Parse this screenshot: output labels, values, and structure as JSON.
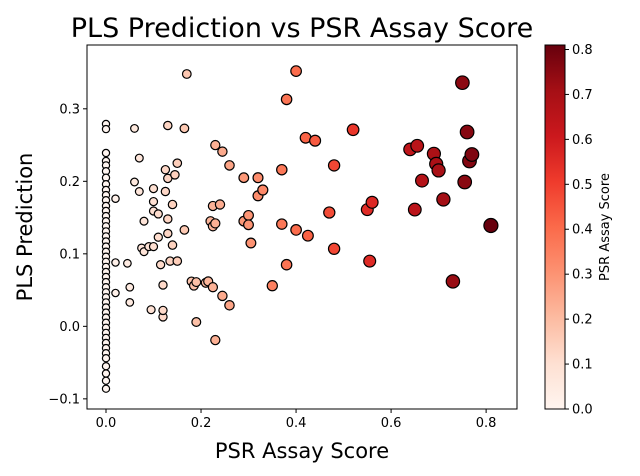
{
  "chart_data": {
    "type": "scatter",
    "title": "PLS Prediction vs PSR Assay Score",
    "xlabel": "PSR Assay Score",
    "ylabel": "PLS Prediction",
    "colorbar_label": "PSR Assay Score",
    "xlim": [
      -0.04,
      0.865
    ],
    "ylim": [
      -0.114,
      0.388
    ],
    "clim": [
      0.0,
      0.81
    ],
    "grid": false,
    "colormap": "Reds",
    "marker_edge_color": "#000000",
    "x_ticks": [
      0.0,
      0.2,
      0.4,
      0.6,
      0.8
    ],
    "x_tick_labels": [
      "0.0",
      "0.2",
      "0.4",
      "0.6",
      "0.8"
    ],
    "y_ticks": [
      -0.1,
      0.0,
      0.1,
      0.2,
      0.3
    ],
    "y_tick_labels": [
      "−0.1",
      "0.0",
      "0.1",
      "0.2",
      "0.3"
    ],
    "colorbar_ticks": [
      0.0,
      0.1,
      0.2,
      0.3,
      0.4,
      0.5,
      0.6,
      0.7,
      0.8
    ],
    "colorbar_tick_labels": [
      "0.0",
      "0.1",
      "0.2",
      "0.3",
      "0.4",
      "0.5",
      "0.6",
      "0.7",
      "0.8"
    ],
    "points": [
      [
        0.0,
        0.279
      ],
      [
        0.0,
        0.272
      ],
      [
        0.0,
        0.239
      ],
      [
        0.0,
        0.228
      ],
      [
        0.0,
        0.222
      ],
      [
        0.0,
        0.214
      ],
      [
        0.0,
        0.205
      ],
      [
        0.0,
        0.196
      ],
      [
        0.0,
        0.188
      ],
      [
        0.0,
        0.181
      ],
      [
        0.0,
        0.174
      ],
      [
        0.0,
        0.166
      ],
      [
        0.0,
        0.159
      ],
      [
        0.0,
        0.152
      ],
      [
        0.0,
        0.145
      ],
      [
        0.0,
        0.138
      ],
      [
        0.0,
        0.131
      ],
      [
        0.0,
        0.124
      ],
      [
        0.0,
        0.117
      ],
      [
        0.0,
        0.11
      ],
      [
        0.0,
        0.103
      ],
      [
        0.0,
        0.096
      ],
      [
        0.0,
        0.089
      ],
      [
        0.0,
        0.082
      ],
      [
        0.0,
        0.075
      ],
      [
        0.0,
        0.068
      ],
      [
        0.0,
        0.061
      ],
      [
        0.0,
        0.054
      ],
      [
        0.0,
        0.047
      ],
      [
        0.0,
        0.04
      ],
      [
        0.0,
        0.033
      ],
      [
        0.0,
        0.026
      ],
      [
        0.0,
        0.019
      ],
      [
        0.0,
        0.012
      ],
      [
        0.0,
        0.005
      ],
      [
        0.0,
        -0.002
      ],
      [
        0.0,
        -0.009
      ],
      [
        0.0,
        -0.016
      ],
      [
        0.0,
        -0.023
      ],
      [
        0.0,
        -0.03
      ],
      [
        0.0,
        -0.037
      ],
      [
        0.0,
        -0.044
      ],
      [
        0.0,
        -0.055
      ],
      [
        0.0,
        -0.065
      ],
      [
        0.0,
        -0.075
      ],
      [
        0.0,
        -0.086
      ],
      [
        0.02,
        0.176
      ],
      [
        0.02,
        0.088
      ],
      [
        0.02,
        0.046
      ],
      [
        0.045,
        0.087
      ],
      [
        0.05,
        0.033
      ],
      [
        0.05,
        0.054
      ],
      [
        0.06,
        0.199
      ],
      [
        0.06,
        0.273
      ],
      [
        0.07,
        0.232
      ],
      [
        0.07,
        0.186
      ],
      [
        0.075,
        0.108
      ],
      [
        0.08,
        0.145
      ],
      [
        0.08,
        0.103
      ],
      [
        0.09,
        0.11
      ],
      [
        0.095,
        0.023
      ],
      [
        0.1,
        0.172
      ],
      [
        0.1,
        0.159
      ],
      [
        0.1,
        0.19
      ],
      [
        0.1,
        0.11
      ],
      [
        0.11,
        0.155
      ],
      [
        0.11,
        0.123
      ],
      [
        0.115,
        0.085
      ],
      [
        0.12,
        0.013
      ],
      [
        0.12,
        0.022
      ],
      [
        0.12,
        0.057
      ],
      [
        0.125,
        0.186
      ],
      [
        0.125,
        0.216
      ],
      [
        0.13,
        0.148
      ],
      [
        0.13,
        0.277
      ],
      [
        0.13,
        0.204
      ],
      [
        0.13,
        0.128
      ],
      [
        0.135,
        0.09
      ],
      [
        0.14,
        0.168
      ],
      [
        0.14,
        0.112
      ],
      [
        0.145,
        0.209
      ],
      [
        0.15,
        0.09
      ],
      [
        0.15,
        0.225
      ],
      [
        0.165,
        0.133
      ],
      [
        0.165,
        0.273
      ],
      [
        0.17,
        0.348
      ],
      [
        0.18,
        0.062
      ],
      [
        0.185,
        0.056
      ],
      [
        0.19,
        0.006
      ],
      [
        0.19,
        0.061
      ],
      [
        0.21,
        0.06
      ],
      [
        0.215,
        0.062
      ],
      [
        0.22,
        0.145
      ],
      [
        0.225,
        0.138
      ],
      [
        0.225,
        0.166
      ],
      [
        0.225,
        0.054
      ],
      [
        0.23,
        0.25
      ],
      [
        0.23,
        0.142
      ],
      [
        0.23,
        -0.019
      ],
      [
        0.24,
        0.168
      ],
      [
        0.245,
        0.042
      ],
      [
        0.245,
        0.241
      ],
      [
        0.26,
        0.029
      ],
      [
        0.26,
        0.222
      ],
      [
        0.29,
        0.205
      ],
      [
        0.29,
        0.145
      ],
      [
        0.3,
        0.153
      ],
      [
        0.3,
        0.14
      ],
      [
        0.305,
        0.115
      ],
      [
        0.32,
        0.205
      ],
      [
        0.32,
        0.18
      ],
      [
        0.33,
        0.188
      ],
      [
        0.35,
        0.056
      ],
      [
        0.37,
        0.216
      ],
      [
        0.37,
        0.141
      ],
      [
        0.38,
        0.313
      ],
      [
        0.38,
        0.085
      ],
      [
        0.4,
        0.352
      ],
      [
        0.4,
        0.133
      ],
      [
        0.42,
        0.26
      ],
      [
        0.425,
        0.125
      ],
      [
        0.44,
        0.256
      ],
      [
        0.47,
        0.157
      ],
      [
        0.48,
        0.222
      ],
      [
        0.48,
        0.107
      ],
      [
        0.52,
        0.271
      ],
      [
        0.55,
        0.161
      ],
      [
        0.555,
        0.09
      ],
      [
        0.56,
        0.171
      ],
      [
        0.64,
        0.244
      ],
      [
        0.65,
        0.161
      ],
      [
        0.655,
        0.249
      ],
      [
        0.665,
        0.201
      ],
      [
        0.69,
        0.238
      ],
      [
        0.695,
        0.224
      ],
      [
        0.7,
        0.215
      ],
      [
        0.71,
        0.175
      ],
      [
        0.73,
        0.062
      ],
      [
        0.75,
        0.336
      ],
      [
        0.755,
        0.199
      ],
      [
        0.76,
        0.268
      ],
      [
        0.765,
        0.228
      ],
      [
        0.77,
        0.237
      ],
      [
        0.81,
        0.139
      ]
    ]
  }
}
